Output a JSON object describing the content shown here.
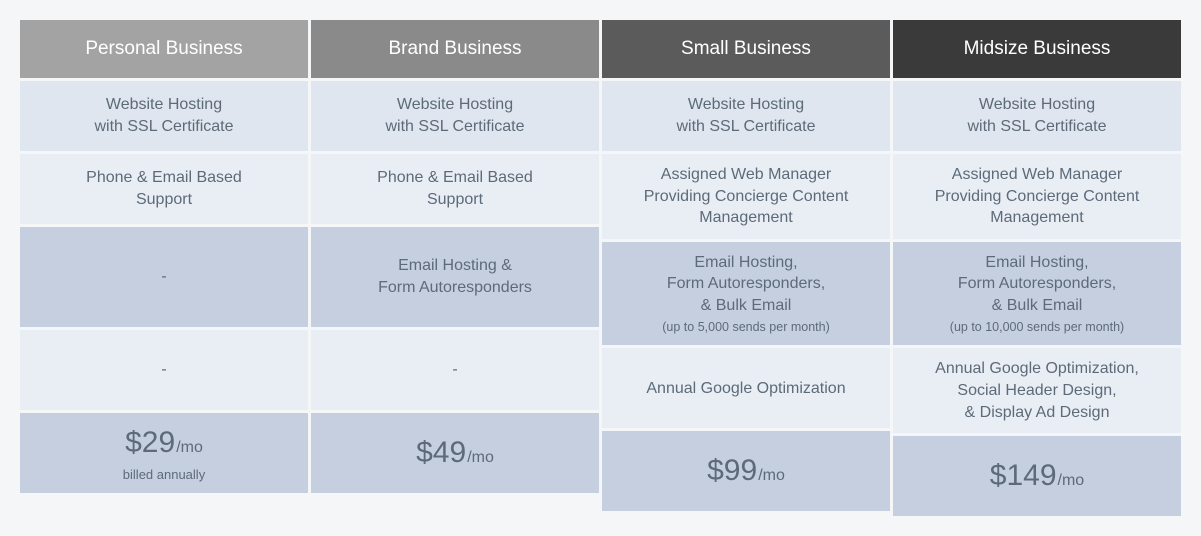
{
  "table": {
    "header_colors": [
      "#a3a3a3",
      "#8a8a8a",
      "#5b5b5b",
      "#3a3a3a"
    ],
    "row_colors": {
      "r0": "#dfe6ef",
      "r1": "#e9eef5",
      "r2": "#c5cfe0",
      "r3": "#e9eef5",
      "price": "#c5cfe0"
    },
    "text_color": "#5d6a78",
    "header_text_color": "#ffffff",
    "columns": [
      {
        "title": "Personal Business",
        "rows": [
          {
            "lines": [
              "Website Hosting",
              "with SSL Certificate"
            ]
          },
          {
            "lines": [
              "Phone & Email Based",
              "Support"
            ]
          },
          {
            "lines": [
              "-"
            ]
          },
          {
            "lines": [
              "-"
            ]
          }
        ],
        "price": {
          "amount": "$29",
          "per": "/mo",
          "sub": "billed annually"
        }
      },
      {
        "title": "Brand Business",
        "rows": [
          {
            "lines": [
              "Website Hosting",
              "with SSL Certificate"
            ]
          },
          {
            "lines": [
              "Phone & Email Based",
              "Support"
            ]
          },
          {
            "lines": [
              "Email Hosting &",
              "Form Autoresponders"
            ]
          },
          {
            "lines": [
              "-"
            ]
          }
        ],
        "price": {
          "amount": "$49",
          "per": "/mo",
          "sub": ""
        }
      },
      {
        "title": "Small Business",
        "rows": [
          {
            "lines": [
              "Website Hosting",
              "with SSL Certificate"
            ]
          },
          {
            "lines": [
              "Assigned Web Manager",
              "Providing Concierge Content",
              "Management"
            ]
          },
          {
            "lines": [
              "Email Hosting,",
              "Form Autoresponders,",
              "& Bulk Email"
            ],
            "sub": "(up to 5,000 sends per month)"
          },
          {
            "lines": [
              "Annual Google Optimization"
            ]
          }
        ],
        "price": {
          "amount": "$99",
          "per": "/mo",
          "sub": ""
        }
      },
      {
        "title": "Midsize Business",
        "rows": [
          {
            "lines": [
              "Website Hosting",
              "with SSL Certificate"
            ]
          },
          {
            "lines": [
              "Assigned Web Manager",
              "Providing Concierge Content",
              "Management"
            ]
          },
          {
            "lines": [
              "Email Hosting,",
              "Form Autoresponders,",
              "& Bulk Email"
            ],
            "sub": "(up to 10,000 sends per month)"
          },
          {
            "lines": [
              "Annual Google Optimization,",
              "Social Header Design,",
              "& Display Ad Design"
            ]
          }
        ],
        "price": {
          "amount": "$149",
          "per": "/mo",
          "sub": ""
        }
      }
    ]
  }
}
